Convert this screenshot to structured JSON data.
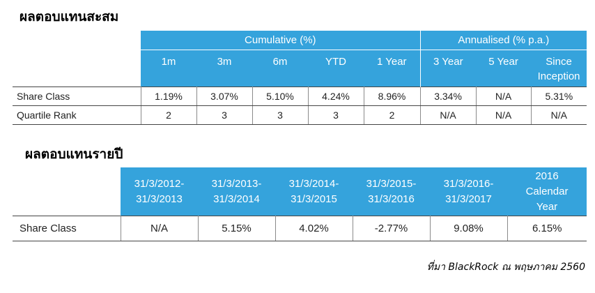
{
  "performance": {
    "title": "ผลตอบแทนสะสม",
    "group_headers": {
      "cumulative": "Cumulative (%)",
      "annualised": "Annualised (% p.a.)"
    },
    "columns": [
      "1m",
      "3m",
      "6m",
      "YTD",
      "1 Year",
      "3 Year",
      "5 Year",
      "Since Inception"
    ],
    "rows": [
      {
        "label": "Share Class",
        "values": [
          "1.19%",
          "3.07%",
          "5.10%",
          "4.24%",
          "8.96%",
          "3.34%",
          "N/A",
          "5.31%"
        ]
      },
      {
        "label": "Quartile Rank",
        "values": [
          "2",
          "3",
          "3",
          "3",
          "2",
          "N/A",
          "N/A",
          "N/A"
        ]
      }
    ]
  },
  "annual": {
    "title": "ผลตอบแทนรายปี",
    "columns": [
      [
        "31/3/2012-",
        "31/3/2013"
      ],
      [
        "31/3/2013-",
        "31/3/2014"
      ],
      [
        "31/3/2014-",
        "31/3/2015"
      ],
      [
        "31/3/2015-",
        "31/3/2016"
      ],
      [
        "31/3/2016-",
        "31/3/2017"
      ],
      [
        "2016",
        "Calendar",
        "Year"
      ]
    ],
    "rows": [
      {
        "label": "Share Class",
        "values": [
          "N/A",
          "5.15%",
          "4.02%",
          "-2.77%",
          "9.08%",
          "6.15%"
        ]
      }
    ]
  },
  "source": "ที่มา BlackRock ณ พฤษภาคม 2560",
  "colors": {
    "header_bg": "#35a3dc",
    "header_text": "#ffffff"
  }
}
